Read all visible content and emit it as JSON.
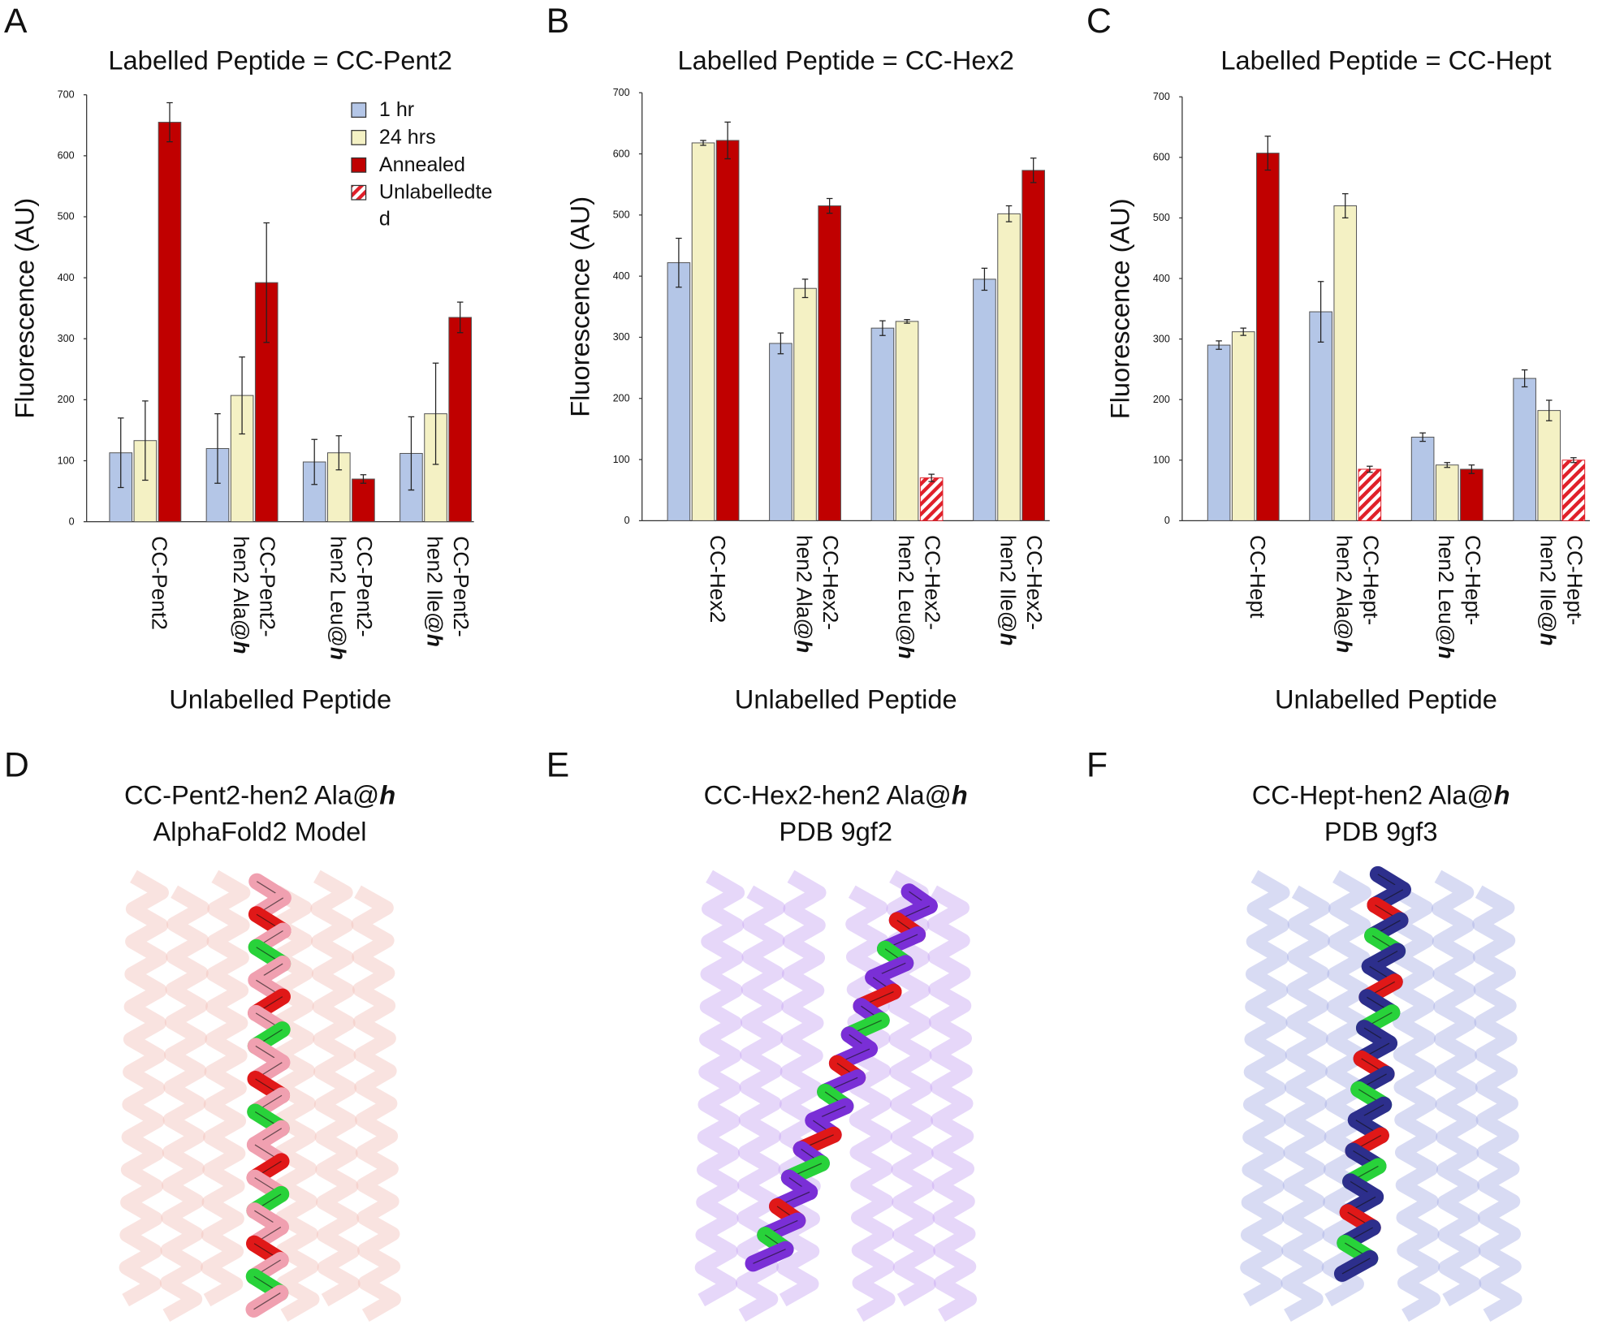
{
  "panels": [
    "A",
    "B",
    "C",
    "D",
    "E",
    "F"
  ],
  "chart_data": [
    {
      "type": "bar",
      "title": "Labelled Peptide = CC-Pent2",
      "xlabel": "Unlabelled Peptide",
      "ylabel": "Fluorescence (AU)",
      "categories": [
        "CC-Pent2",
        "CC-Pent2-hen2 Ala@h",
        "CC-Pent2-hen2 Leu@h",
        "CC-Pent2-hen2 Ile@h"
      ],
      "series": [
        {
          "name": "1 hr",
          "color": "#b4c6e7",
          "values": [
            113,
            120,
            98,
            112
          ],
          "errors": [
            57,
            57,
            37,
            60
          ]
        },
        {
          "name": "24 hrs",
          "color": "#f4f1c4",
          "values": [
            133,
            207,
            113,
            177
          ],
          "errors": [
            65,
            63,
            28,
            83
          ]
        },
        {
          "name": "Annealed",
          "color": "#c00000",
          "values": [
            655,
            392,
            70,
            335
          ],
          "errors": [
            32,
            98,
            7,
            25
          ]
        },
        {
          "name": "Unlabelledted",
          "color": "#e0202a",
          "pattern": "hatch",
          "values": [
            null,
            null,
            null,
            null
          ],
          "errors": [
            null,
            null,
            null,
            null
          ]
        }
      ],
      "ylim": [
        0,
        700
      ],
      "yticks": [
        0,
        100,
        200,
        300,
        400,
        500,
        600,
        700
      ],
      "legend": "upper right"
    },
    {
      "type": "bar",
      "title": "Labelled Peptide = CC-Hex2",
      "xlabel": "Unlabelled Peptide",
      "ylabel": "Fluorescence (AU)",
      "categories": [
        "CC-Hex2",
        "CC-Hex2-hen2 Ala@h",
        "CC-Hex2-hen2 Leu@h",
        "CC-Hex2-hen2 Ile@h"
      ],
      "series": [
        {
          "color": "#b4c6e7",
          "values": [
            422,
            290,
            315,
            395
          ],
          "errors": [
            40,
            17,
            12,
            18
          ]
        },
        {
          "color": "#f4f1c4",
          "values": [
            618,
            380,
            326,
            502
          ],
          "errors": [
            4,
            15,
            3,
            13
          ]
        },
        {
          "color": "#c00000",
          "values": [
            622,
            515,
            null,
            573
          ],
          "errors": [
            30,
            12,
            null,
            20
          ]
        },
        {
          "color": "#e0202a",
          "pattern": "hatch",
          "values": [
            null,
            null,
            70,
            null
          ],
          "errors": [
            null,
            null,
            6,
            null
          ]
        }
      ],
      "ylim": [
        0,
        700
      ],
      "yticks": [
        0,
        100,
        200,
        300,
        400,
        500,
        600,
        700
      ]
    },
    {
      "type": "bar",
      "title": "Labelled Peptide = CC-Hept",
      "xlabel": "Unlabelled Peptide",
      "ylabel": "Fluorescence (AU)",
      "categories": [
        "CC-Hept",
        "CC-Hept-hen2 Ala@h",
        "CC-Hept-hen2 Leu@h",
        "CC-Hept-hen2 Ile@h"
      ],
      "series": [
        {
          "color": "#b4c6e7",
          "values": [
            290,
            345,
            138,
            235
          ],
          "errors": [
            7,
            50,
            7,
            14
          ]
        },
        {
          "color": "#f4f1c4",
          "values": [
            312,
            520,
            92,
            182
          ],
          "errors": [
            6,
            20,
            4,
            17
          ]
        },
        {
          "color": "#c00000",
          "values": [
            607,
            null,
            85,
            null
          ],
          "errors": [
            28,
            null,
            7,
            null
          ]
        },
        {
          "color": "#e0202a",
          "pattern": "hatch",
          "values": [
            null,
            85,
            null,
            100
          ],
          "errors": [
            null,
            5,
            null,
            4
          ]
        }
      ],
      "ylim": [
        0,
        700
      ],
      "yticks": [
        0,
        100,
        200,
        300,
        400,
        500,
        600,
        700
      ]
    }
  ],
  "structures": [
    {
      "title": "CC-Pent2-hen2 Ala@h",
      "subtitle": "AlphaFold2 Model"
    },
    {
      "title": "CC-Hex2-hen2 Ala@h",
      "subtitle": "PDB 9gf2"
    },
    {
      "title": "CC-Hept-hen2 Ala@h",
      "subtitle": "PDB 9gf3"
    }
  ]
}
